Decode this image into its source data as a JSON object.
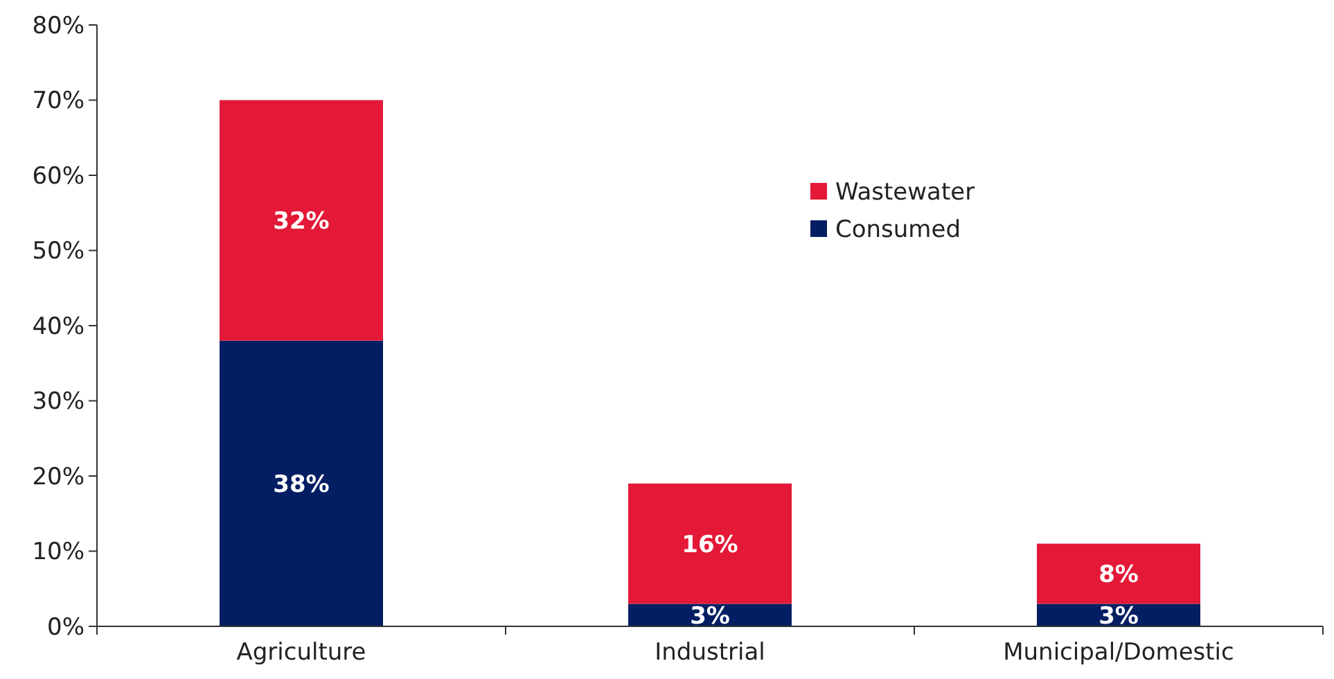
{
  "chart_data": {
    "type": "bar",
    "stacked": true,
    "categories": [
      "Agriculture",
      "Industrial",
      "Municipal/Domestic"
    ],
    "series": [
      {
        "name": "Consumed",
        "color": "#031e62",
        "values": [
          38,
          3,
          3
        ],
        "value_labels": [
          "38%",
          "3%",
          "3%"
        ]
      },
      {
        "name": "Wastewater",
        "color": "#e31937",
        "values": [
          32,
          16,
          8
        ],
        "value_labels": [
          "32%",
          "16%",
          "8%"
        ]
      }
    ],
    "ylim": [
      0,
      80
    ],
    "yticks": [
      {
        "value": 0,
        "label": "0%"
      },
      {
        "value": 10,
        "label": "10%"
      },
      {
        "value": 20,
        "label": "20%"
      },
      {
        "value": 30,
        "label": "30%"
      },
      {
        "value": 40,
        "label": "40%"
      },
      {
        "value": 50,
        "label": "50%"
      },
      {
        "value": 60,
        "label": "60%"
      },
      {
        "value": 70,
        "label": "70%"
      },
      {
        "value": 80,
        "label": "80%"
      }
    ],
    "grid": false,
    "legend": "top right"
  }
}
